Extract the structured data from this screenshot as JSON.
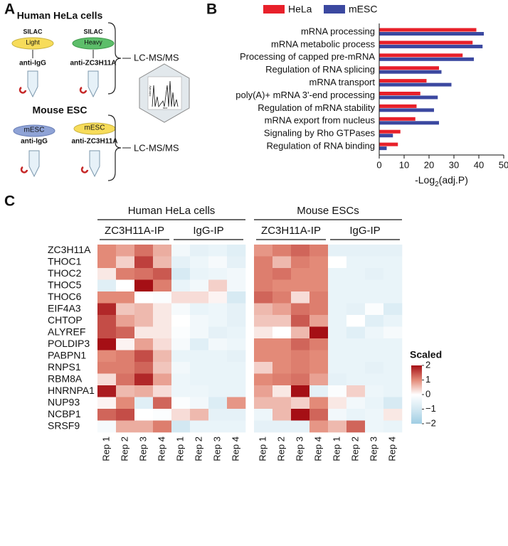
{
  "panel_labels": [
    "A",
    "B",
    "C"
  ],
  "panel_a": {
    "human_title": "Human HeLa cells",
    "human_dishes": [
      {
        "top": "SILAC",
        "label": "Light",
        "antibody": "anti-IgG"
      },
      {
        "top": "SILAC",
        "label": "Heavy",
        "antibody": "anti-ZC3H11A"
      }
    ],
    "mouse_title": "Mouse ESC",
    "mouse_dishes": [
      {
        "label": "mESC",
        "antibody": "anti-IgG"
      },
      {
        "label": "mESC",
        "antibody": "anti-ZC3H11A"
      }
    ],
    "method": [
      "LC-MS/MS",
      "LC-MS/MS"
    ],
    "spectrum_axes": [
      "Intensity",
      "m/z"
    ]
  },
  "chart_data": [
    {
      "type": "bar",
      "orientation": "horizontal",
      "categories": [
        "mRNA processing",
        "mRNA metabolic process",
        "Processing of capped pre-mRNA",
        "Regulation of RNA splicing",
        "mRNA transport",
        "poly(A)+ mRNA 3'-end processing",
        "Regulation of mRNA stability",
        "mRNA export from nucleus",
        "Signaling by Rho GTPases",
        "Regulation of RNA binding"
      ],
      "series": [
        {
          "name": "HeLa",
          "color": "#e8202a",
          "values": [
            39,
            37.5,
            33.5,
            24,
            19,
            16.5,
            15,
            14.5,
            8.5,
            7.5
          ]
        },
        {
          "name": "mESC",
          "color": "#3b48a0",
          "values": [
            42,
            41.5,
            38,
            25,
            29,
            23.5,
            22,
            24,
            5.5,
            3
          ]
        }
      ],
      "xlim": [
        0,
        50
      ],
      "xticks": [
        0,
        10,
        20,
        30,
        40,
        50
      ],
      "xlabel_parts": [
        "-Log",
        "2",
        "(adj.P)"
      ],
      "legend": "top"
    },
    {
      "type": "heatmap",
      "groups": [
        {
          "label": "Human HeLa cells",
          "subgroups": [
            "ZC3H11A-IP",
            "IgG-IP"
          ]
        },
        {
          "label": "Mouse ESCs",
          "subgroups": [
            "ZC3H11A-IP",
            "IgG-IP"
          ]
        }
      ],
      "rows": [
        "ZC3H11A",
        "THOC1",
        "THOC2",
        "THOC5",
        "THOC6",
        "EIF4A3",
        "CHTOP",
        "ALYREF",
        "POLDIP3",
        "PABPN1",
        "RNPS1",
        "RBM8A",
        "HNRNPA1",
        "NUP93",
        "NCBP1",
        "SRSF9"
      ],
      "columns": [
        "Rep 1",
        "Rep 2",
        "Rep 3",
        "Rep 4",
        "Rep 1",
        "Rep 2",
        "Rep 3",
        "Rep 4",
        "Rep 1",
        "Rep 2",
        "Rep 3",
        "Rep 4",
        "Rep 1",
        "Rep 2",
        "Rep 3",
        "Rep 4"
      ],
      "values": [
        [
          1.0,
          0.8,
          1.2,
          0.7,
          -0.3,
          -0.6,
          -0.5,
          -0.7,
          0.9,
          1.1,
          1.3,
          1.1,
          -0.6,
          -0.6,
          -0.6,
          -0.6
        ],
        [
          1.0,
          0.4,
          1.6,
          0.6,
          -0.6,
          -0.4,
          -0.2,
          -0.6,
          1.1,
          0.6,
          1.1,
          1.0,
          0.0,
          -0.5,
          -0.5,
          -0.5
        ],
        [
          0.2,
          1.1,
          1.2,
          1.4,
          -0.9,
          -0.5,
          -0.4,
          -0.3,
          1.1,
          1.2,
          1.0,
          1.0,
          -0.5,
          -0.5,
          -0.6,
          -0.5
        ],
        [
          -0.7,
          0.0,
          2.0,
          1.1,
          -0.5,
          -0.3,
          0.4,
          -0.3,
          1.1,
          1.0,
          1.0,
          1.0,
          -0.5,
          -0.5,
          -0.5,
          -0.5
        ],
        [
          1.0,
          1.0,
          0.0,
          -0.1,
          0.3,
          0.3,
          0.1,
          -0.9,
          1.3,
          1.1,
          0.3,
          1.1,
          -0.5,
          -0.5,
          -0.5,
          -0.5
        ],
        [
          1.8,
          0.5,
          0.6,
          0.2,
          -0.2,
          -0.5,
          -0.4,
          -0.6,
          0.6,
          0.8,
          1.2,
          1.1,
          -0.5,
          -0.6,
          -0.1,
          -0.8
        ],
        [
          1.5,
          0.8,
          0.6,
          0.2,
          0.0,
          -0.3,
          -0.4,
          -0.6,
          0.5,
          0.5,
          1.4,
          0.8,
          -0.5,
          0.0,
          -0.7,
          -0.5
        ],
        [
          1.5,
          1.3,
          0.2,
          0.2,
          -0.1,
          -0.3,
          -0.6,
          -0.5,
          0.2,
          0.0,
          0.6,
          2.2,
          -0.5,
          -0.7,
          -0.4,
          -0.2
        ],
        [
          2.0,
          0.1,
          0.8,
          0.3,
          -0.2,
          -0.7,
          -0.3,
          -0.4,
          1.0,
          1.0,
          1.3,
          1.1,
          -0.5,
          -0.5,
          -0.5,
          -0.5
        ],
        [
          1.0,
          1.1,
          1.5,
          0.6,
          -0.5,
          -0.5,
          -0.5,
          -0.6,
          1.0,
          1.0,
          1.1,
          1.0,
          -0.5,
          -0.5,
          -0.5,
          -0.5
        ],
        [
          1.1,
          1.1,
          1.3,
          0.5,
          -0.3,
          -0.5,
          -0.5,
          -0.5,
          0.4,
          1.0,
          1.1,
          1.0,
          -0.5,
          -0.5,
          -0.6,
          -0.5
        ],
        [
          0.3,
          1.2,
          1.8,
          0.8,
          -0.4,
          -0.5,
          -0.5,
          -0.5,
          1.0,
          1.1,
          1.2,
          0.8,
          -0.6,
          -0.5,
          -0.5,
          -0.5
        ],
        [
          1.9,
          0.6,
          0.7,
          0.3,
          -0.4,
          -0.4,
          -0.5,
          -0.5,
          0.8,
          0.2,
          2.0,
          -0.6,
          -0.1,
          0.4,
          -0.4,
          -0.5
        ],
        [
          0.1,
          1.0,
          -0.7,
          1.3,
          -0.1,
          -0.3,
          -0.8,
          0.9,
          0.6,
          0.6,
          0.4,
          1.0,
          0.2,
          -0.3,
          -0.5,
          -0.9
        ],
        [
          1.3,
          1.5,
          0.0,
          -0.1,
          0.3,
          0.6,
          -0.6,
          -0.6,
          -0.4,
          0.6,
          2.0,
          1.3,
          -0.3,
          -0.5,
          -0.4,
          0.2
        ],
        [
          -0.2,
          0.7,
          0.7,
          1.1,
          -1.0,
          -0.5,
          -0.5,
          -0.5,
          -0.6,
          -0.6,
          -0.6,
          0.9,
          0.6,
          1.3,
          -0.4,
          -0.5
        ]
      ],
      "colorbar": {
        "title": "Scaled",
        "clim": [
          -2,
          2
        ],
        "ticks": [
          2,
          1,
          0,
          {
            "value": -1,
            "label": "−1"
          },
          {
            "value": -2,
            "label": "−2"
          }
        ],
        "colors": [
          "#9fcde3",
          "#d3e8f2",
          "#ffffff",
          "#e38a78",
          "#a50f15"
        ]
      }
    }
  ]
}
